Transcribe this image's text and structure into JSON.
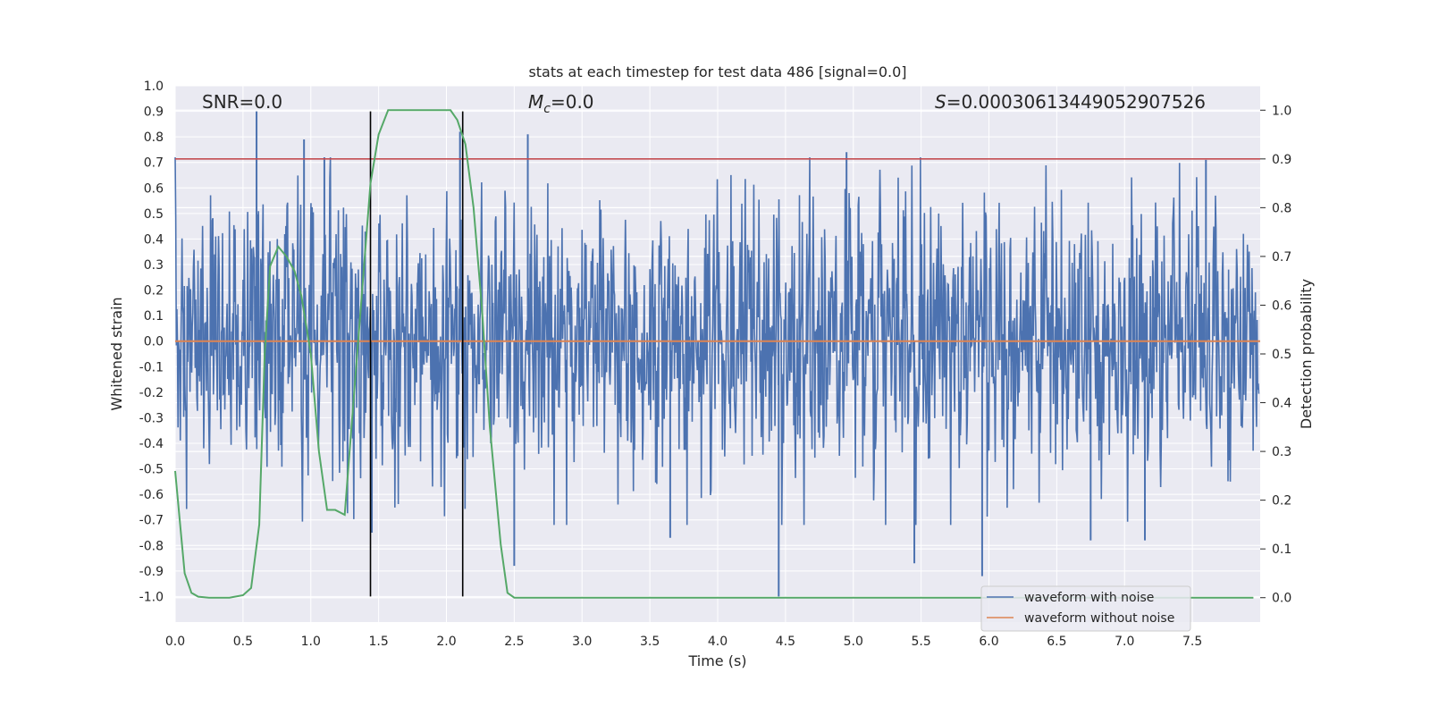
{
  "chart_data": {
    "type": "line",
    "title": "stats at each timestep for test data 486 [signal=0.0]",
    "xlabel": "Time (s)",
    "ylabel": "Whitened strain",
    "y2label": "Detection probability",
    "xlim": [
      0.0,
      8.0
    ],
    "ylim": [
      -1.1,
      1.0
    ],
    "y2lim": [
      -0.05,
      1.05
    ],
    "xticks": [
      "0.0",
      "0.5",
      "1.0",
      "1.5",
      "2.0",
      "2.5",
      "3.0",
      "3.5",
      "4.0",
      "4.5",
      "5.0",
      "5.5",
      "6.0",
      "6.5",
      "7.0",
      "7.5"
    ],
    "yticks": [
      "-1.0",
      "-0.9",
      "-0.8",
      "-0.7",
      "-0.6",
      "-0.5",
      "-0.4",
      "-0.3",
      "-0.2",
      "-0.1",
      "0.0",
      "0.1",
      "0.2",
      "0.3",
      "0.4",
      "0.5",
      "0.6",
      "0.7",
      "0.8",
      "0.9",
      "1.0"
    ],
    "y2ticks": [
      "0.0",
      "0.1",
      "0.2",
      "0.3",
      "0.4",
      "0.5",
      "0.6",
      "0.7",
      "0.8",
      "0.9",
      "1.0"
    ],
    "grid": true,
    "legend_position": "lower-right",
    "annotations": {
      "snr": "SNR=0.0",
      "mc_symbol": "M",
      "mc_subscript": "c",
      "mc_value": "=0.0",
      "s_symbol": "S",
      "s_value": "=0.00030613449052907526"
    },
    "threshold": 0.9,
    "vertical_lines_x": [
      1.44,
      2.12
    ],
    "vertical_lines_y": [
      -1.0,
      0.9
    ],
    "series": [
      {
        "name": "waveform with noise",
        "color": "#4c72b0",
        "description_amplitude": 0.35,
        "peaks": [
          [
            0.6,
            0.9
          ],
          [
            0.95,
            0.79
          ],
          [
            1.1,
            0.72
          ],
          [
            2.1,
            0.82
          ],
          [
            2.6,
            0.81
          ],
          [
            4.95,
            0.74
          ],
          [
            7.6,
            0.71
          ],
          [
            4.45,
            -1.0
          ],
          [
            5.95,
            -0.92
          ],
          [
            2.5,
            -0.88
          ],
          [
            5.45,
            -0.87
          ],
          [
            1.45,
            -0.75
          ],
          [
            3.65,
            -0.77
          ],
          [
            6.75,
            -0.78
          ],
          [
            7.15,
            -0.78
          ]
        ]
      },
      {
        "name": "waveform without noise",
        "color": "#dd8452",
        "value": 0.0
      },
      {
        "name": "detection probability",
        "color": "#55a868",
        "x": [
          0.0,
          0.07,
          0.12,
          0.17,
          0.25,
          0.4,
          0.5,
          0.56,
          0.62,
          0.66,
          0.7,
          0.76,
          0.82,
          0.88,
          0.93,
          1.0,
          1.06,
          1.12,
          1.18,
          1.25,
          1.3,
          1.37,
          1.44,
          1.5,
          1.57,
          1.65,
          1.8,
          1.95,
          2.03,
          2.08,
          2.14,
          2.2,
          2.26,
          2.32,
          2.4,
          2.45,
          2.5,
          2.6,
          3.0,
          4.0,
          5.0,
          6.0,
          7.0,
          7.95
        ],
        "y": [
          0.26,
          0.05,
          0.01,
          0.002,
          0.0,
          0.0,
          0.005,
          0.02,
          0.15,
          0.5,
          0.68,
          0.72,
          0.7,
          0.67,
          0.62,
          0.5,
          0.3,
          0.18,
          0.18,
          0.17,
          0.35,
          0.6,
          0.85,
          0.95,
          1.0,
          1.0,
          1.0,
          1.0,
          1.0,
          0.98,
          0.93,
          0.8,
          0.6,
          0.35,
          0.11,
          0.01,
          0.0,
          0.0,
          0.0,
          0.0,
          0.0,
          0.0,
          0.0,
          0.0
        ]
      },
      {
        "name": "threshold",
        "color": "#c44e52",
        "value": 0.9
      }
    ]
  }
}
